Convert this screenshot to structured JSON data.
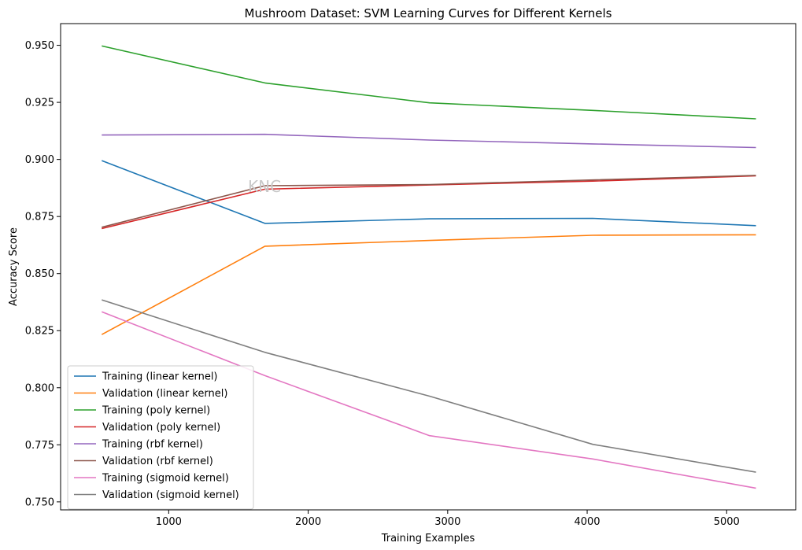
{
  "chart_data": {
    "type": "line",
    "title": "Mushroom Dataset: SVM Learning Curves for Different Kernels",
    "xlabel": "Training Examples",
    "ylabel": "Accuracy Score",
    "xlim": [
      225,
      5495
    ],
    "ylim": [
      0.7465,
      0.9595
    ],
    "xticks": [
      1000,
      2000,
      3000,
      4000,
      5000
    ],
    "xtick_labels": [
      "1000",
      "2000",
      "3000",
      "4000",
      "5000"
    ],
    "yticks": [
      0.75,
      0.775,
      0.8,
      0.825,
      0.85,
      0.875,
      0.9,
      0.925,
      0.95
    ],
    "ytick_labels": [
      "0.750",
      "0.775",
      "0.800",
      "0.825",
      "0.850",
      "0.875",
      "0.900",
      "0.925",
      "0.950"
    ],
    "grid": false,
    "legend_position": "lower-left",
    "watermark": "KNC",
    "x": [
      520,
      1690,
      2870,
      4040,
      5210
    ],
    "series": [
      {
        "name": "Training (linear kernel)",
        "color": "#1f77b4",
        "values": [
          0.8995,
          0.872,
          0.874,
          0.8742,
          0.871
        ]
      },
      {
        "name": "Validation (linear kernel)",
        "color": "#ff7f0e",
        "values": [
          0.8233,
          0.862,
          0.8645,
          0.8668,
          0.867
        ]
      },
      {
        "name": "Training (poly kernel)",
        "color": "#2ca02c",
        "values": [
          0.9497,
          0.9335,
          0.9248,
          0.9215,
          0.9178
        ]
      },
      {
        "name": "Validation (poly kernel)",
        "color": "#d62728",
        "values": [
          0.8697,
          0.887,
          0.8888,
          0.8905,
          0.8928
        ]
      },
      {
        "name": "Training (rbf kernel)",
        "color": "#9467bd",
        "values": [
          0.9107,
          0.911,
          0.9085,
          0.9068,
          0.9052
        ]
      },
      {
        "name": "Validation (rbf kernel)",
        "color": "#8c564b",
        "values": [
          0.8703,
          0.8885,
          0.889,
          0.891,
          0.893
        ]
      },
      {
        "name": "Training (sigmoid kernel)",
        "color": "#e377c2",
        "values": [
          0.8333,
          0.8053,
          0.779,
          0.7688,
          0.756
        ]
      },
      {
        "name": "Validation (sigmoid kernel)",
        "color": "#7f7f7f",
        "values": [
          0.8385,
          0.8155,
          0.7963,
          0.7752,
          0.763
        ]
      }
    ]
  }
}
